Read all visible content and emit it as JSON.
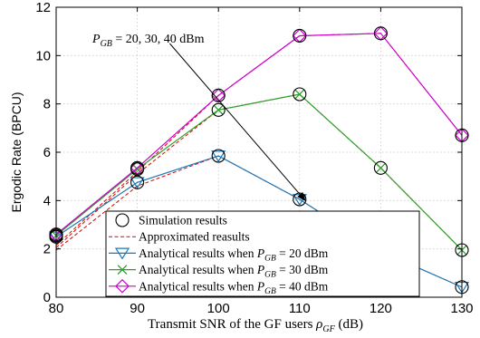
{
  "chart_data": {
    "type": "line",
    "xlabel": "Transmit SNR of the GF users ρGF (dB)",
    "xlabel_main": "Transmit SNR of the GF users ",
    "xlabel_sym": "ρ",
    "xlabel_sub": "GF",
    "xlabel_unit": " (dB)",
    "ylabel": "Ergodic Rate (BPCU)",
    "xlim": [
      80,
      130
    ],
    "ylim": [
      0,
      12
    ],
    "xticks": [
      80,
      90,
      100,
      110,
      120,
      130
    ],
    "yticks": [
      0,
      2,
      4,
      6,
      8,
      10,
      12
    ],
    "grid": true,
    "legend_placement": "bottom-center",
    "x": [
      80,
      90,
      100,
      110,
      120,
      130
    ],
    "series": [
      {
        "name": "Simulation results (PGB = 20 dBm)",
        "role": "simulation",
        "values": [
          2.5,
          4.75,
          5.85,
          4.05,
          1.9,
          0.42
        ],
        "color": "#000000"
      },
      {
        "name": "Simulation results (PGB = 30 dBm)",
        "role": "simulation",
        "values": [
          2.55,
          5.3,
          7.75,
          8.4,
          5.35,
          1.95
        ],
        "color": "#000000"
      },
      {
        "name": "Simulation results (PGB = 40 dBm)",
        "role": "simulation",
        "values": [
          2.6,
          5.35,
          8.35,
          10.82,
          10.92,
          6.7
        ],
        "color": "#000000"
      },
      {
        "name": "Approximated results (PGB = 20 dBm)",
        "role": "approx",
        "values": [
          1.95,
          4.6,
          5.85,
          4.05,
          1.9,
          0.42
        ],
        "color": "#e00000"
      },
      {
        "name": "Approximated results (PGB = 30 dBm)",
        "role": "approx",
        "values": [
          2.05,
          5.1,
          7.75,
          8.4,
          5.35,
          1.95
        ],
        "color": "#e00000"
      },
      {
        "name": "Approximated results (PGB = 40 dBm)",
        "role": "approx",
        "values": [
          2.15,
          5.2,
          8.35,
          10.82,
          10.92,
          6.7
        ],
        "color": "#e00000"
      },
      {
        "name": "Analytical results when PGB = 20 dBm",
        "role": "analytical",
        "marker": "triangle-down",
        "values": [
          2.5,
          4.75,
          5.85,
          4.05,
          1.9,
          0.42
        ],
        "color": "#1f77b4"
      },
      {
        "name": "Analytical results when PGB = 30 dBm",
        "role": "analytical",
        "marker": "x",
        "values": [
          2.55,
          5.3,
          7.75,
          8.4,
          5.35,
          1.95
        ],
        "color": "#2ca02c"
      },
      {
        "name": "Analytical results when PGB = 40 dBm",
        "role": "analytical",
        "marker": "diamond",
        "values": [
          2.6,
          5.35,
          8.35,
          10.82,
          10.92,
          6.7
        ],
        "color": "#cc00cc"
      }
    ],
    "legend": [
      {
        "label": "Simulation results",
        "line": "none",
        "marker": "circle",
        "color": "#000000"
      },
      {
        "label": "Approximated reasults",
        "line": "dashed",
        "marker": "none",
        "color": "#e00000"
      },
      {
        "label_pre": "Analytical results when ",
        "label_sym": "P",
        "label_sub": "GB",
        "label_post": " = 20 dBm",
        "line": "solid",
        "marker": "triangle-down",
        "color": "#1f77b4"
      },
      {
        "label_pre": "Analytical results when ",
        "label_sym": "P",
        "label_sub": "GB",
        "label_post": " = 30 dBm",
        "line": "solid",
        "marker": "x",
        "color": "#2ca02c"
      },
      {
        "label_pre": "Analytical results when ",
        "label_sym": "P",
        "label_sub": "GB",
        "label_post": " = 40 dBm",
        "line": "solid",
        "marker": "diamond",
        "color": "#cc00cc"
      }
    ],
    "annotation": {
      "sym": "P",
      "sub": "GB",
      "text": " = 20, 30, 40 dBm",
      "arrow_from": [
        94,
        10.5
      ],
      "arrow_to": [
        110.7,
        4.0
      ]
    }
  }
}
